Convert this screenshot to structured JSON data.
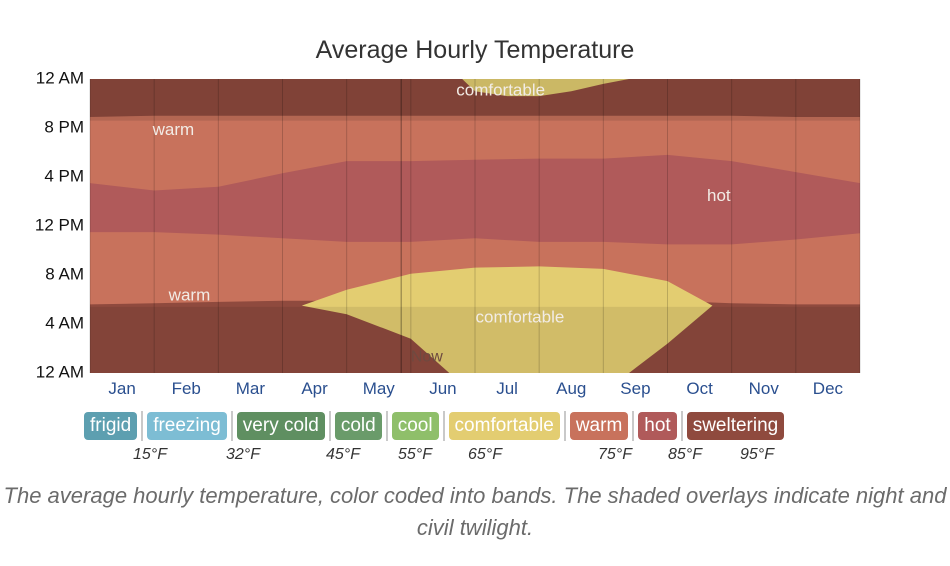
{
  "chart_data": {
    "type": "heatmap",
    "title": "Average Hourly Temperature",
    "y_ticks": [
      "12 AM",
      "8 PM",
      "4 PM",
      "12 PM",
      "8 AM",
      "4 AM",
      "12 AM"
    ],
    "months": [
      "Jan",
      "Feb",
      "Mar",
      "Apr",
      "May",
      "Jun",
      "Jul",
      "Aug",
      "Sep",
      "Oct",
      "Nov",
      "Dec"
    ],
    "band_colors": {
      "frigid": "#5d9fb0",
      "freezing": "#7dbdd4",
      "very_cold": "#5f8f61",
      "cold": "#6a9b6a",
      "cool": "#8fbf6a",
      "comfortable": "#e3cd71",
      "warm": "#c8725c",
      "hot": "#b05a5a",
      "sweltering": "#8f4a3e"
    },
    "regions": {
      "warm_top": {
        "month_pos": [
          0,
          1,
          2,
          3,
          4,
          5,
          6,
          7,
          8,
          9,
          10,
          11,
          12
        ],
        "hour": [
          20.9,
          21.0,
          21.0,
          21.0,
          21.0,
          21.0,
          21.0,
          21.0,
          21.0,
          21.0,
          21.0,
          20.9,
          20.9
        ]
      },
      "hot_upper": {
        "month_pos": [
          0,
          1,
          2,
          3,
          4,
          5,
          6,
          7,
          8,
          9,
          10,
          11,
          12
        ],
        "hour": [
          15.5,
          14.9,
          15.2,
          16.3,
          17.3,
          17.3,
          17.4,
          17.5,
          17.5,
          17.8,
          17.3,
          16.4,
          15.5
        ]
      },
      "hot_lower": {
        "month_pos": [
          0,
          1,
          2,
          3,
          4,
          5,
          6,
          7,
          8,
          9,
          10,
          11,
          12
        ],
        "hour": [
          11.5,
          11.5,
          11.3,
          11.0,
          10.7,
          10.7,
          11.0,
          10.7,
          10.7,
          10.5,
          10.5,
          10.9,
          11.4
        ]
      },
      "warm_bottom": {
        "month_pos": [
          0,
          1,
          2,
          3,
          4,
          5,
          6,
          7,
          8,
          9,
          10,
          11,
          12
        ],
        "hour": [
          5.6,
          5.7,
          5.8,
          5.9,
          5.9,
          5.9,
          5.9,
          5.9,
          5.9,
          5.9,
          5.7,
          5.6,
          5.6
        ]
      },
      "comfortable_top": {
        "month_pos": [
          5.8,
          6.0,
          6.5,
          7.0,
          7.5,
          8.0,
          8.4
        ],
        "hour": [
          24.0,
          23.0,
          22.6,
          22.6,
          23.0,
          23.6,
          24.0
        ]
      },
      "comfortable_morning_top": {
        "month_pos": [
          3.3,
          4.0,
          5.0,
          6.0,
          7.0,
          8.0,
          9.0,
          9.7
        ],
        "hour": [
          5.5,
          6.8,
          8.1,
          8.6,
          8.7,
          8.5,
          7.5,
          5.5
        ]
      },
      "comfortable_morning_bottom": {
        "month_pos": [
          3.3,
          4.0,
          5.0,
          5.6,
          6.3,
          7.0,
          8.0,
          8.4,
          9.0,
          9.7
        ],
        "hour": [
          5.5,
          4.8,
          2.8,
          0.0,
          0.0,
          0.0,
          0.0,
          0.0,
          2.4,
          5.5
        ]
      }
    },
    "region_labels": [
      {
        "text": "comfortable",
        "month_pos": 6.4,
        "hour": 23.0
      },
      {
        "text": "warm",
        "month_pos": 1.3,
        "hour": 19.8
      },
      {
        "text": "hot",
        "month_pos": 9.8,
        "hour": 14.4
      },
      {
        "text": "warm",
        "month_pos": 1.55,
        "hour": 6.3
      },
      {
        "text": "comfortable",
        "month_pos": 6.7,
        "hour": 4.5
      }
    ],
    "now_label": {
      "text": "Now",
      "month_pos": 5.0,
      "hour": 1.3
    },
    "legend": [
      "frigid",
      "freezing",
      "very cold",
      "cold",
      "cool",
      "comfortable",
      "warm",
      "hot",
      "sweltering"
    ],
    "thresholds": [
      "15°F",
      "32°F",
      "45°F",
      "55°F",
      "65°F",
      "75°F",
      "85°F",
      "95°F"
    ],
    "caption": "The average hourly temperature, color coded into bands. The shaded overlays indicate night and civil twilight."
  }
}
